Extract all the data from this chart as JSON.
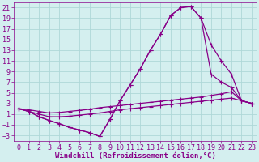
{
  "background_color": "#d4efef",
  "grid_color": "#aed8d8",
  "line_color": "#880088",
  "marker_color": "#880088",
  "xlabel": "Windchill (Refroidissement éolien,°C)",
  "xlabel_fontsize": 6.5,
  "tick_fontsize": 6.0,
  "xlim": [
    -0.5,
    23.5
  ],
  "ylim": [
    -4,
    22
  ],
  "yticks": [
    -3,
    -1,
    1,
    3,
    5,
    7,
    9,
    11,
    13,
    15,
    17,
    19,
    21
  ],
  "xticks": [
    0,
    1,
    2,
    3,
    4,
    5,
    6,
    7,
    8,
    9,
    10,
    11,
    12,
    13,
    14,
    15,
    16,
    17,
    18,
    19,
    20,
    21,
    22,
    23
  ],
  "curve1_y": [
    2.0,
    1.5,
    0.5,
    -0.2,
    -0.8,
    -1.5,
    -2.0,
    -2.5,
    -3.2,
    0.0,
    3.5,
    6.5,
    9.5,
    13.0,
    16.0,
    19.5,
    21.0,
    21.2,
    19.0,
    14.0,
    11.0,
    8.5,
    3.5,
    3.0
  ],
  "curve2_y": [
    2.0,
    1.5,
    0.5,
    -0.2,
    -0.8,
    -1.5,
    -2.0,
    -2.5,
    -3.2,
    0.0,
    3.5,
    6.5,
    9.5,
    13.0,
    16.0,
    19.5,
    21.0,
    21.2,
    19.0,
    8.5,
    7.0,
    6.0,
    3.5,
    3.0
  ],
  "curve3_y": [
    2.0,
    1.8,
    1.5,
    1.2,
    1.3,
    1.5,
    1.7,
    1.9,
    2.2,
    2.4,
    2.6,
    2.8,
    3.0,
    3.2,
    3.4,
    3.6,
    3.8,
    4.0,
    4.2,
    4.5,
    4.8,
    5.2,
    3.5,
    3.0
  ],
  "curve4_y": [
    2.0,
    1.5,
    1.0,
    0.5,
    0.5,
    0.6,
    0.8,
    1.0,
    1.2,
    1.5,
    1.8,
    2.0,
    2.2,
    2.4,
    2.6,
    2.8,
    3.0,
    3.2,
    3.4,
    3.6,
    3.8,
    4.0,
    3.5,
    3.0
  ]
}
